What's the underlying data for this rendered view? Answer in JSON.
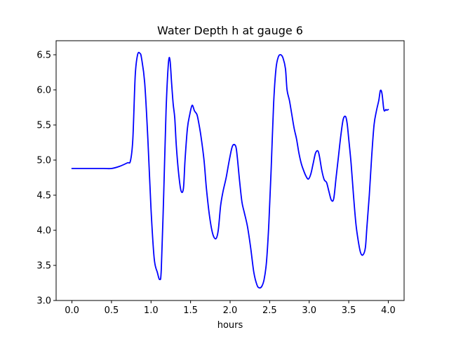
{
  "chart_data": {
    "type": "line",
    "title": "Water Depth h at gauge 6",
    "xlabel": "hours",
    "ylabel": "",
    "xlim": [
      -0.2,
      4.2
    ],
    "ylim": [
      3.0,
      6.7
    ],
    "xticks": [
      "0.0",
      "0.5",
      "1.0",
      "1.5",
      "2.0",
      "2.5",
      "3.0",
      "3.5",
      "4.0"
    ],
    "yticks": [
      "3.0",
      "3.5",
      "4.0",
      "4.5",
      "5.0",
      "5.5",
      "6.0",
      "6.5"
    ],
    "grid": false,
    "series": [
      {
        "color": "#0000ff",
        "x": [
          0.0,
          0.2,
          0.4,
          0.5,
          0.6,
          0.7,
          0.74,
          0.77,
          0.8,
          0.83,
          0.86,
          0.88,
          0.92,
          0.96,
          1.0,
          1.04,
          1.08,
          1.11,
          1.13,
          1.16,
          1.19,
          1.22,
          1.24,
          1.26,
          1.28,
          1.3,
          1.32,
          1.35,
          1.38,
          1.41,
          1.43,
          1.46,
          1.49,
          1.52,
          1.55,
          1.58,
          1.6,
          1.63,
          1.67,
          1.7,
          1.74,
          1.78,
          1.82,
          1.85,
          1.88,
          1.91,
          1.95,
          1.99,
          2.03,
          2.07,
          2.09,
          2.12,
          2.15,
          2.18,
          2.22,
          2.26,
          2.3,
          2.34,
          2.37,
          2.4,
          2.43,
          2.46,
          2.49,
          2.52,
          2.55,
          2.58,
          2.61,
          2.64,
          2.67,
          2.7,
          2.72,
          2.75,
          2.78,
          2.81,
          2.84,
          2.87,
          2.9,
          2.93,
          2.96,
          2.99,
          3.02,
          3.05,
          3.08,
          3.11,
          3.13,
          3.16,
          3.19,
          3.22,
          3.25,
          3.28,
          3.31,
          3.34,
          3.37,
          3.4,
          3.43,
          3.46,
          3.48,
          3.5,
          3.53,
          3.56,
          3.59,
          3.62,
          3.65,
          3.68,
          3.71,
          3.73,
          3.76,
          3.79,
          3.82,
          3.85,
          3.88,
          3.9,
          3.92,
          3.94,
          3.95,
          3.97,
          3.98,
          4.0
        ],
        "y": [
          4.88,
          4.88,
          4.88,
          4.88,
          4.91,
          4.96,
          4.99,
          5.3,
          6.2,
          6.5,
          6.52,
          6.45,
          6.1,
          5.3,
          4.3,
          3.6,
          3.4,
          3.3,
          3.45,
          4.5,
          5.7,
          6.38,
          6.42,
          6.1,
          5.8,
          5.6,
          5.2,
          4.8,
          4.56,
          4.6,
          5.0,
          5.45,
          5.65,
          5.78,
          5.7,
          5.65,
          5.55,
          5.35,
          5.0,
          4.6,
          4.2,
          3.95,
          3.88,
          4.0,
          4.35,
          4.55,
          4.75,
          5.0,
          5.2,
          5.2,
          5.05,
          4.7,
          4.4,
          4.25,
          4.05,
          3.75,
          3.4,
          3.22,
          3.18,
          3.2,
          3.3,
          3.55,
          4.1,
          4.9,
          5.8,
          6.3,
          6.47,
          6.5,
          6.45,
          6.3,
          6.0,
          5.85,
          5.65,
          5.45,
          5.3,
          5.1,
          4.95,
          4.85,
          4.77,
          4.73,
          4.8,
          4.95,
          5.1,
          5.13,
          5.05,
          4.85,
          4.72,
          4.68,
          4.55,
          4.43,
          4.45,
          4.75,
          5.05,
          5.35,
          5.58,
          5.62,
          5.52,
          5.3,
          4.95,
          4.5,
          4.1,
          3.85,
          3.68,
          3.65,
          3.75,
          4.05,
          4.5,
          5.05,
          5.5,
          5.7,
          5.85,
          5.99,
          5.95,
          5.75,
          5.7,
          5.72,
          5.71,
          5.72
        ]
      }
    ]
  }
}
